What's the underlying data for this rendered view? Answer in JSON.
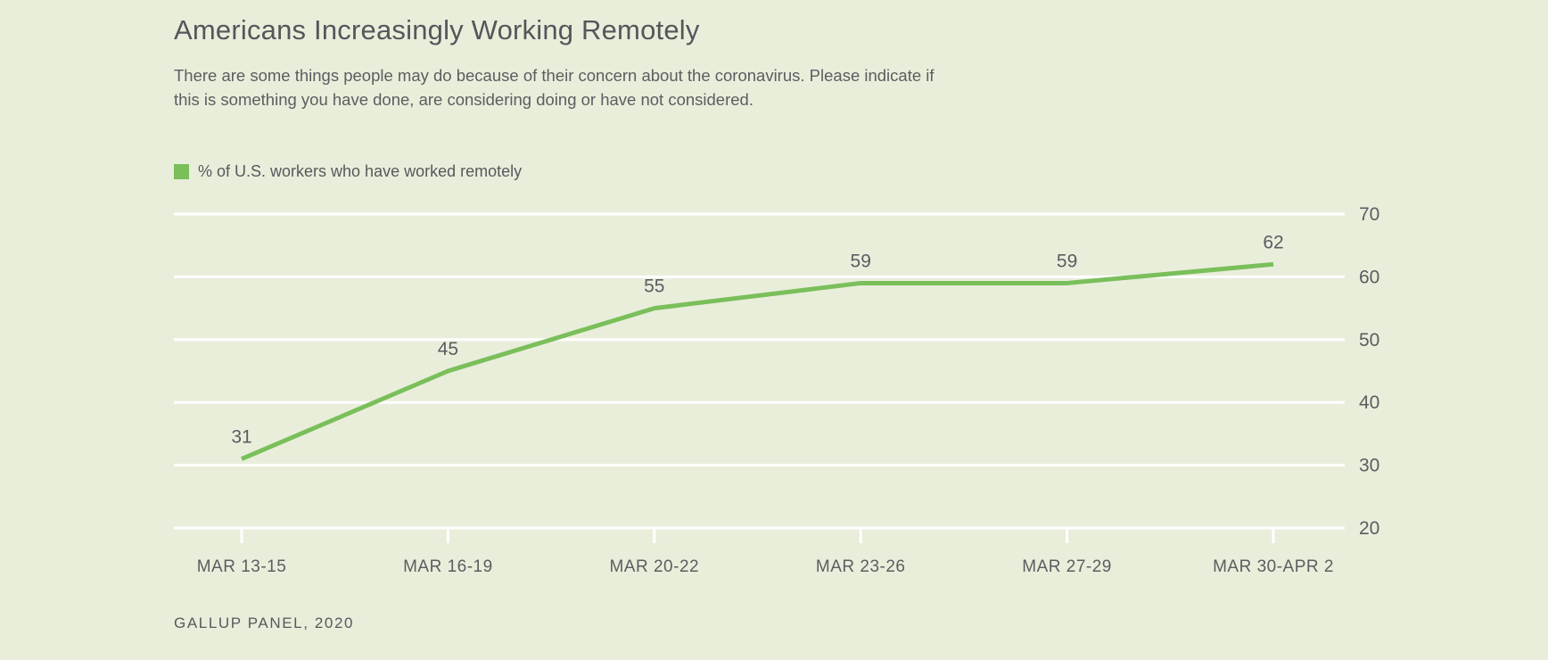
{
  "page": {
    "background_color": "#e9eedb"
  },
  "header": {
    "title": "Americans Increasingly Working Remotely",
    "subtitle": [
      "There are some things people may do because of their concern about the coronavirus. Please indicate if",
      "this is something you have done, are considering doing or have not considered."
    ]
  },
  "legend": {
    "swatch_color": "#7abf5a",
    "label": "% of U.S. workers who have worked remotely"
  },
  "chart_data": {
    "type": "line",
    "title": "Americans Increasingly Working Remotely",
    "series_name": "% of U.S. workers who have worked remotely",
    "categories": [
      "MAR 13-15",
      "MAR 16-19",
      "MAR 20-22",
      "MAR 23-26",
      "MAR 27-29",
      "MAR 30-APR 2"
    ],
    "values": [
      31,
      45,
      55,
      59,
      59,
      62
    ],
    "data_labels_shown": true,
    "xlabel": "",
    "ylabel": "",
    "ylim": [
      20,
      70
    ],
    "yticks": [
      20,
      30,
      40,
      50,
      60,
      70
    ],
    "y_axis_side": "right",
    "grid": "horizontal",
    "line_color": "#7abf5a",
    "gridline_color": "#ffffff",
    "text_color": "#5a5e60"
  },
  "source": {
    "text": "GALLUP PANEL, 2020"
  }
}
